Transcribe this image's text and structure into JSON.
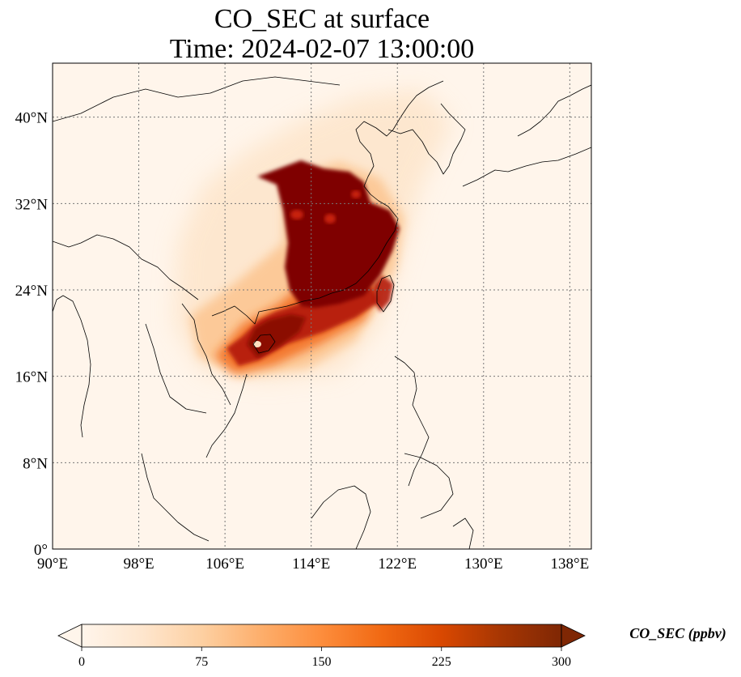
{
  "title": {
    "line1": "CO_SEC at surface",
    "line2": "Time: 2024-02-07 13:00:00"
  },
  "map": {
    "lon_range": [
      90,
      140
    ],
    "lat_range": [
      0,
      45
    ],
    "lon_ticks": [
      {
        "value": 90,
        "label": "90°E"
      },
      {
        "value": 98,
        "label": "98°E"
      },
      {
        "value": 106,
        "label": "106°E"
      },
      {
        "value": 114,
        "label": "114°E"
      },
      {
        "value": 122,
        "label": "122°E"
      },
      {
        "value": 130,
        "label": "130°E"
      },
      {
        "value": 138,
        "label": "138°E"
      }
    ],
    "lat_ticks": [
      {
        "value": 0,
        "label": "0°"
      },
      {
        "value": 8,
        "label": "8°N"
      },
      {
        "value": 16,
        "label": "16°N"
      },
      {
        "value": 24,
        "label": "24°N"
      },
      {
        "value": 32,
        "label": "32°N"
      },
      {
        "value": 40,
        "label": "40°N"
      }
    ],
    "gridlines": true,
    "background_color": "#fff5eb",
    "coastline_color": "#000000"
  },
  "colorbar": {
    "label": "CO_SEC (ppbv)",
    "min": 0,
    "max": 300,
    "ticks": [
      {
        "value": 0,
        "label": "0"
      },
      {
        "value": 75,
        "label": "75"
      },
      {
        "value": 150,
        "label": "150"
      },
      {
        "value": 225,
        "label": "225"
      },
      {
        "value": 300,
        "label": "300"
      }
    ],
    "extend": "both",
    "colormap": [
      "#fff5eb",
      "#fee6ce",
      "#fdd0a2",
      "#fdae6b",
      "#fd8d3c",
      "#f16913",
      "#d94801",
      "#a63603",
      "#7f2704"
    ]
  }
}
